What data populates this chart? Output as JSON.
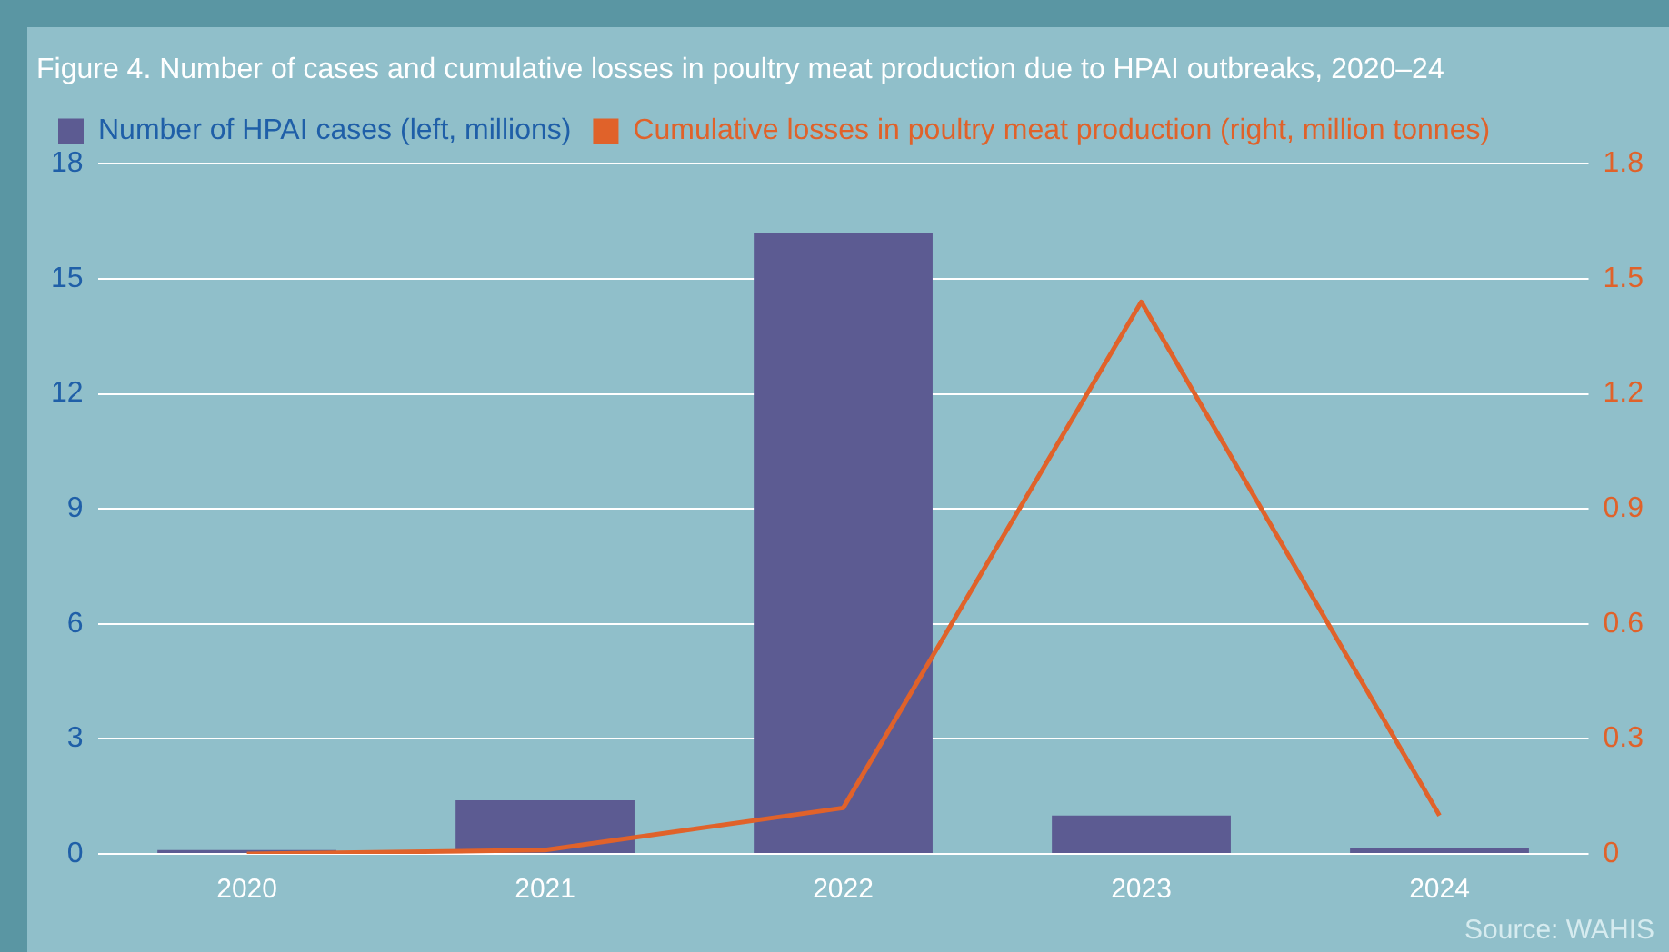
{
  "chart_data": {
    "type": "bar",
    "title": "Figure 4. Number of cases and cumulative losses in poultry meat production due to HPAI outbreaks, 2020–24",
    "categories": [
      "2020",
      "2021",
      "2022",
      "2023",
      "2024"
    ],
    "series": [
      {
        "name": "Number of HPAI cases (left, millions)",
        "color": "#5c5b92",
        "values": [
          0.1,
          1.4,
          16.2,
          1.0,
          0.15
        ]
      },
      {
        "name": "Cumulative losses in poultry meat production (right, million tonnes)",
        "type": "line",
        "axis": "y2",
        "color": "#e0622a",
        "values": [
          0,
          0.01,
          0.12,
          1.44,
          0.1
        ]
      }
    ],
    "ylim": [
      0,
      18
    ],
    "yticks": [
      0,
      3,
      6,
      9,
      12,
      15,
      18
    ],
    "y2lim": [
      0,
      1.8
    ],
    "y2ticks": [
      {
        "value": 0,
        "label": "0"
      },
      {
        "value": 0.3,
        "label": "0.3"
      },
      {
        "value": 0.6,
        "label": "0.6"
      },
      {
        "value": 0.9,
        "label": "0.9"
      },
      {
        "value": 1.2,
        "label": "1.2"
      },
      {
        "value": 1.5,
        "label": "1.5"
      },
      {
        "value": 1.8,
        "label": "1.8"
      }
    ],
    "grid": "y",
    "legend": "top",
    "marker": "none",
    "line_style": "solid",
    "annotations": [
      "Source: WAHIS"
    ]
  }
}
